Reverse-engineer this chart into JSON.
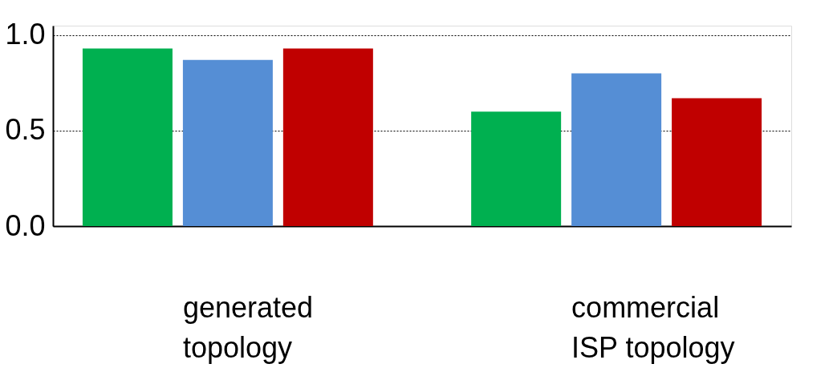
{
  "chart_data": {
    "type": "bar",
    "categories": [
      "generated\ntopology",
      "commercial\nISP  topology"
    ],
    "series": [
      {
        "color": "#00b050",
        "values": [
          0.93,
          0.6
        ]
      },
      {
        "color": "#558ed5",
        "values": [
          0.87,
          0.8
        ]
      },
      {
        "color": "#c00000",
        "values": [
          0.93,
          0.67
        ]
      }
    ],
    "ylim": [
      0,
      1.05
    ],
    "yticks": [
      {
        "value": 0,
        "label": "0.0"
      },
      0.5,
      {
        "value": 1.0,
        "label": "1.0"
      }
    ],
    "grid": "y"
  }
}
